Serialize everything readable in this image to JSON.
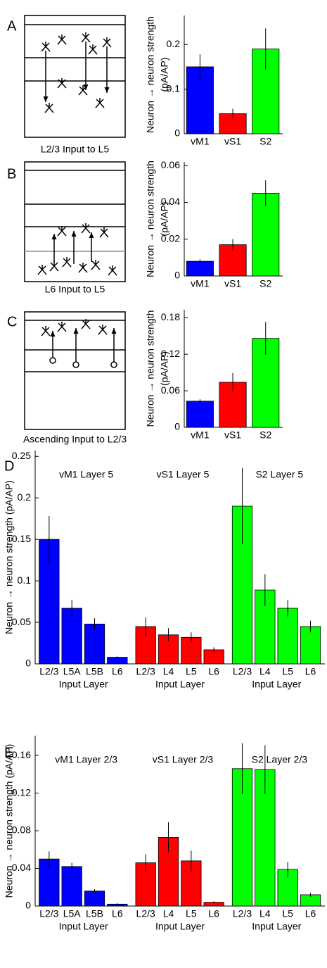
{
  "chart_data": [
    {
      "type": "bar",
      "panel": "A",
      "caption": "L2/3 Input to L5",
      "ylabel": [
        "Neuron → neuron strength",
        "(pA/AP)"
      ],
      "categories": [
        "vM1",
        "vS1",
        "S2"
      ],
      "values": [
        0.15,
        0.045,
        0.19
      ],
      "errors": [
        0.028,
        0.011,
        0.046
      ],
      "colors": [
        "#0000ff",
        "#ff0000",
        "#00ff00"
      ],
      "ylim": [
        0,
        0.265
      ],
      "yticks": [
        0,
        0.1,
        0.2
      ]
    },
    {
      "type": "bar",
      "panel": "B",
      "caption": "L6 Input to L5",
      "ylabel": [
        "Neuron → neuron strength",
        "(pA/AP)"
      ],
      "categories": [
        "vM1",
        "vS1",
        "S2"
      ],
      "values": [
        0.008,
        0.017,
        0.045
      ],
      "errors": [
        0.001,
        0.003,
        0.007
      ],
      "colors": [
        "#0000ff",
        "#ff0000",
        "#00ff00"
      ],
      "ylim": [
        0,
        0.062
      ],
      "yticks": [
        0,
        0.02,
        0.04,
        0.06
      ]
    },
    {
      "type": "bar",
      "panel": "C",
      "caption": "Ascending Input to L2/3",
      "ylabel": [
        "Neuron → neuron strength",
        "(pA/AP)"
      ],
      "categories": [
        "vM1",
        "vS1",
        "S2"
      ],
      "values": [
        0.043,
        0.074,
        0.146
      ],
      "errors": [
        0.003,
        0.015,
        0.027
      ],
      "colors": [
        "#0000ff",
        "#ff0000",
        "#00ff00"
      ],
      "ylim": [
        0,
        0.193
      ],
      "yticks": [
        0,
        0.06,
        0.12,
        0.18
      ]
    },
    {
      "type": "grouped_bar",
      "panel": "D",
      "ylabel": "Neuron → neuron strength (pA/AP)",
      "ylim": [
        0,
        0.257
      ],
      "yticks": [
        0,
        0.05,
        0.1,
        0.15,
        0.2,
        0.25
      ],
      "groups": [
        {
          "title": "vM1 Layer 5",
          "xlabel": "Input Layer",
          "color": "#0000ff",
          "categories": [
            "L2/3",
            "L5A",
            "L5B",
            "L6"
          ],
          "values": [
            0.15,
            0.067,
            0.048,
            0.008
          ],
          "errors": [
            0.028,
            0.01,
            0.007,
            0.001
          ]
        },
        {
          "title": "vS1 Layer 5",
          "xlabel": "Input Layer",
          "color": "#ff0000",
          "categories": [
            "L2/3",
            "L4",
            "L5",
            "L6"
          ],
          "values": [
            0.045,
            0.035,
            0.032,
            0.017
          ],
          "errors": [
            0.011,
            0.008,
            0.006,
            0.003
          ]
        },
        {
          "title": "S2 Layer 5",
          "xlabel": "Input Layer",
          "color": "#00ff00",
          "categories": [
            "L2/3",
            "L4",
            "L5",
            "L6"
          ],
          "values": [
            0.19,
            0.089,
            0.067,
            0.045
          ],
          "errors": [
            0.046,
            0.019,
            0.01,
            0.007
          ]
        }
      ]
    },
    {
      "type": "grouped_bar",
      "panel": "E",
      "ylabel": "Neuron → neuron strength (pA/AP)",
      "ylim": [
        0,
        0.181
      ],
      "yticks": [
        0,
        0.04,
        0.08,
        0.12,
        0.16
      ],
      "groups": [
        {
          "title": "vM1 Layer 2/3",
          "xlabel": "Input Layer",
          "color": "#0000ff",
          "categories": [
            "L2/3",
            "L5A",
            "L5B",
            "L6"
          ],
          "values": [
            0.05,
            0.042,
            0.016,
            0.002
          ],
          "errors": [
            0.008,
            0.004,
            0.002,
            0.001
          ]
        },
        {
          "title": "vS1 Layer 2/3",
          "xlabel": "Input Layer",
          "color": "#ff0000",
          "categories": [
            "L2/3",
            "L4",
            "L5",
            "L6"
          ],
          "values": [
            0.046,
            0.073,
            0.048,
            0.004
          ],
          "errors": [
            0.009,
            0.016,
            0.011,
            0.001
          ]
        },
        {
          "title": "S2 Layer 2/3",
          "xlabel": "Input Layer",
          "color": "#00ff00",
          "categories": [
            "L2/3",
            "L4",
            "L5",
            "L6"
          ],
          "values": [
            0.146,
            0.145,
            0.039,
            0.012
          ],
          "errors": [
            0.027,
            0.026,
            0.008,
            0.002
          ]
        }
      ]
    }
  ]
}
